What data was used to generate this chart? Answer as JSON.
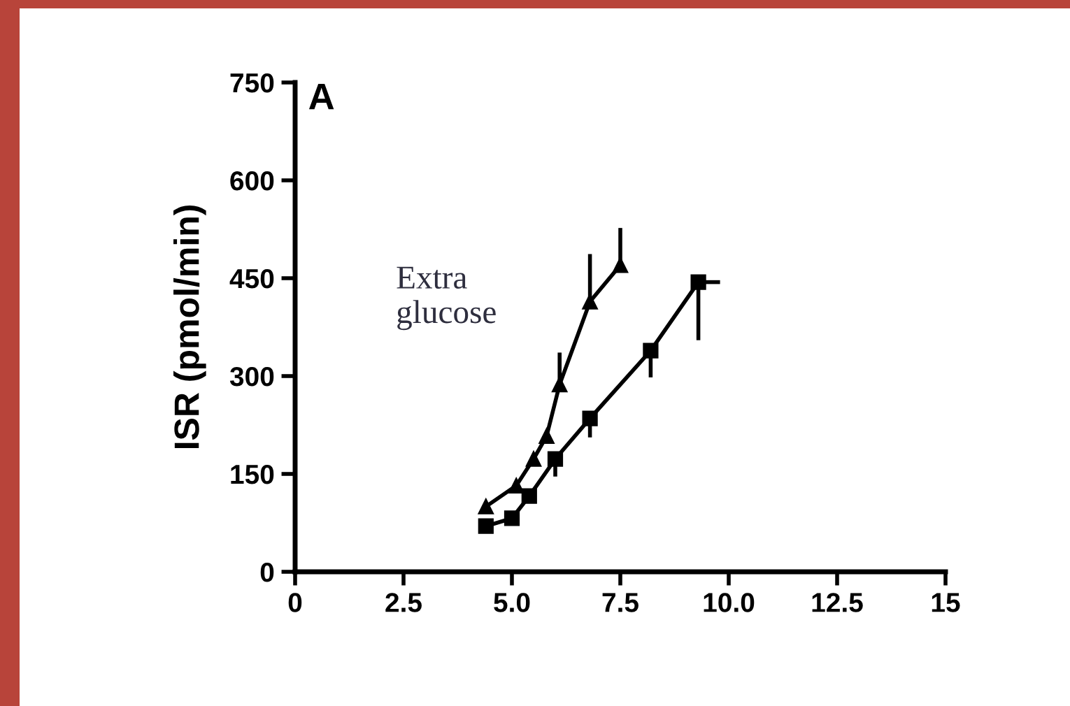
{
  "chart_data": {
    "type": "line",
    "ylabel": "ISR (pmol/min)",
    "annotations": [
      "A",
      "Extra\nglucose"
    ],
    "xlim": [
      0,
      15
    ],
    "xticks": [
      0,
      {
        "value": 2.5,
        "label": "2.5"
      },
      {
        "value": 5,
        "label": "5.0"
      },
      {
        "value": 7.5,
        "label": "7.5"
      },
      {
        "value": 10,
        "label": "10.0"
      },
      {
        "value": 12.5,
        "label": "12.5"
      },
      15
    ],
    "ylim": [
      0,
      750
    ],
    "yticks": [
      0,
      150,
      300,
      450,
      600,
      750
    ],
    "grid": false,
    "line_style": "solid",
    "series": [
      {
        "color": "#000000",
        "marker": "triangle",
        "x": [
          4.4,
          5.1,
          5.5,
          5.8,
          6.1,
          6.8,
          7.5
        ],
        "values": [
          100,
          132,
          173,
          208,
          287,
          414,
          470
        ],
        "errors": [
          null,
          null,
          null,
          null,
          [
            287,
            336
          ],
          [
            414,
            487
          ],
          [
            470,
            527
          ]
        ]
      },
      {
        "color": "#000000",
        "marker": "square",
        "x": [
          4.4,
          5.0,
          5.4,
          6.0,
          6.8,
          8.2,
          9.3
        ],
        "values": [
          70,
          82,
          116,
          173,
          235,
          339,
          444
        ],
        "errors": [
          null,
          null,
          null,
          [
            146,
            173
          ],
          [
            206,
            235
          ],
          [
            298,
            339
          ],
          [
            355,
            444
          ]
        ],
        "xerrors": [
          null,
          null,
          null,
          null,
          null,
          null,
          [
            9.3,
            9.8
          ]
        ]
      }
    ]
  }
}
